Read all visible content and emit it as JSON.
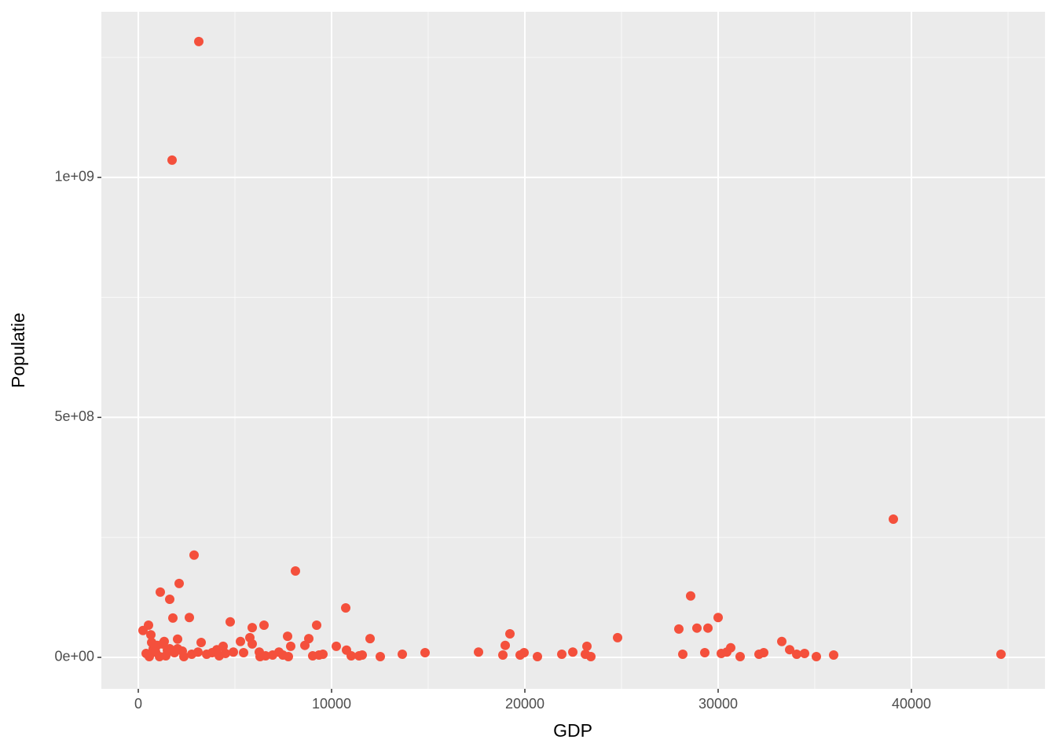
{
  "chart_data": {
    "type": "scatter",
    "x_label": "GDP",
    "y_label": "Populatie",
    "color": "#f4503c",
    "xlim": [
      -1911,
      46911
    ],
    "ylim": [
      -65500000,
      1345000000
    ],
    "xticks": [
      0,
      10000,
      20000,
      30000,
      40000
    ],
    "yticks": [
      {
        "value": 0,
        "label": "0e+00"
      },
      {
        "value": 500000000,
        "label": "5e+08"
      },
      {
        "value": 1000000000,
        "label": "1e+09"
      }
    ],
    "xminor": [
      5000,
      15000,
      25000,
      35000,
      45000
    ],
    "yminor": [
      250000000,
      750000000,
      1250000000
    ],
    "grid": true,
    "x": [
      3130,
      1748,
      39065,
      2886,
      8130,
      2114,
      1138,
      28577,
      1626,
      10732,
      30000,
      1789,
      2642,
      4756,
      6504,
      9228,
      528,
      5894,
      27967,
      28902,
      29472,
      244,
      19228,
      650,
      5772,
      24797,
      7724,
      11992,
      8821,
      2033,
      5285,
      3252,
      33293,
      5894,
      18984,
      23211,
      10244,
      30650,
      4390,
      7886,
      8618,
      33700,
      10772,
      4065,
      4919,
      6260,
      7276,
      17602,
      14837,
      19959,
      22480,
      29309,
      30447,
      32358,
      34472,
      9553,
      11585,
      13659,
      18862,
      21911,
      28171,
      30163,
      32114,
      34065,
      35976,
      44634,
      23130,
      23415,
      20650,
      19756,
      12520,
      11016,
      11423,
      9024,
      9350,
      31138,
      35081,
      407,
      772,
      976,
      1260,
      1504,
      1870,
      2276,
      569,
      1098,
      1423,
      2358,
      2764,
      3089,
      3537,
      3821,
      4187,
      4512,
      5447,
      6301,
      6585,
      6951,
      7480,
      7764,
      894,
      1626,
      2033,
      691,
      1341
    ],
    "values": [
      1283000000,
      1036000000,
      288000000,
      213000000,
      180000000,
      154000000,
      136000000,
      128000000,
      121000000,
      103000000,
      83000000,
      82000000,
      83000000,
      74000000,
      67000000,
      67000000,
      67000000,
      62000000,
      59000000,
      61000000,
      61000000,
      56000000,
      49000000,
      47000000,
      41000000,
      41000000,
      44000000,
      39000000,
      39000000,
      38000000,
      33000000,
      31000000,
      33000000,
      28000000,
      25000000,
      23000000,
      23000000,
      20000000,
      23000000,
      23000000,
      25000000,
      16000000,
      15000000,
      16000000,
      11000000,
      11000000,
      11000000,
      11000000,
      9800000,
      9800000,
      11000000,
      9800000,
      11000000,
      9800000,
      8200000,
      6500000,
      4900000,
      6500000,
      4900000,
      6500000,
      6500000,
      8200000,
      6500000,
      6500000,
      4900000,
      6500000,
      6500000,
      1600000,
      1600000,
      4900000,
      1600000,
      3300000,
      3300000,
      3300000,
      4900000,
      1600000,
      1600000,
      8200000,
      18000000,
      25000000,
      28000000,
      15000000,
      9800000,
      13000000,
      1600000,
      1600000,
      3300000,
      1600000,
      6500000,
      11000000,
      6500000,
      9800000,
      3300000,
      8200000,
      9800000,
      1600000,
      3300000,
      4900000,
      4900000,
      1600000,
      11000000,
      18000000,
      18000000,
      31000000,
      33000000
    ]
  }
}
